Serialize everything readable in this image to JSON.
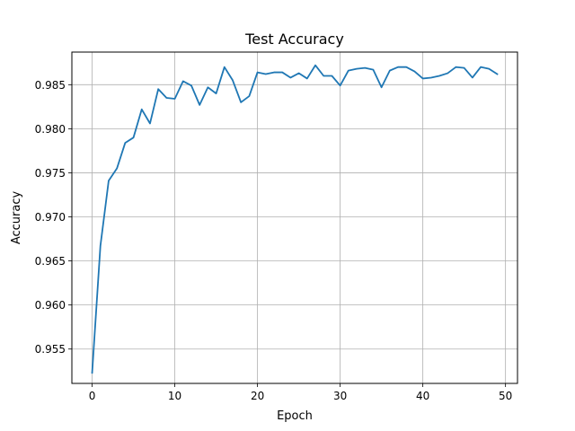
{
  "chart_data": {
    "type": "line",
    "title": "Test Accuracy",
    "xlabel": "Epoch",
    "ylabel": "Accuracy",
    "xlim": [
      -2.45,
      51.45
    ],
    "ylim": [
      0.9511,
      0.9887
    ],
    "xticks": [
      0,
      10,
      20,
      30,
      40,
      50
    ],
    "yticks": [
      0.955,
      0.96,
      0.965,
      0.97,
      0.975,
      0.98,
      0.985
    ],
    "xtick_labels": [
      "0",
      "10",
      "20",
      "30",
      "40",
      "50"
    ],
    "ytick_labels": [
      "0.955",
      "0.960",
      "0.965",
      "0.970",
      "0.975",
      "0.980",
      "0.985"
    ],
    "grid": true,
    "series": [
      {
        "color": "#1f77b4",
        "x": [
          0,
          1,
          2,
          3,
          4,
          5,
          6,
          7,
          8,
          9,
          10,
          11,
          12,
          13,
          14,
          15,
          16,
          17,
          18,
          19,
          20,
          21,
          22,
          23,
          24,
          25,
          26,
          27,
          28,
          29,
          30,
          31,
          32,
          33,
          34,
          35,
          36,
          37,
          38,
          39,
          40,
          41,
          42,
          43,
          44,
          45,
          46,
          47,
          48,
          49
        ],
        "y": [
          0.9523,
          0.9667,
          0.9741,
          0.9755,
          0.9784,
          0.979,
          0.9822,
          0.9806,
          0.9845,
          0.9835,
          0.9834,
          0.9854,
          0.9849,
          0.9827,
          0.9847,
          0.984,
          0.987,
          0.9855,
          0.983,
          0.9837,
          0.9864,
          0.9862,
          0.9864,
          0.9864,
          0.9858,
          0.9863,
          0.9857,
          0.9872,
          0.986,
          0.986,
          0.9849,
          0.9866,
          0.9868,
          0.9869,
          0.9867,
          0.9847,
          0.9866,
          0.987,
          0.987,
          0.9865,
          0.9857,
          0.9858,
          0.986,
          0.9863,
          0.987,
          0.9869,
          0.9858,
          0.987,
          0.9868,
          0.9862
        ]
      }
    ]
  }
}
